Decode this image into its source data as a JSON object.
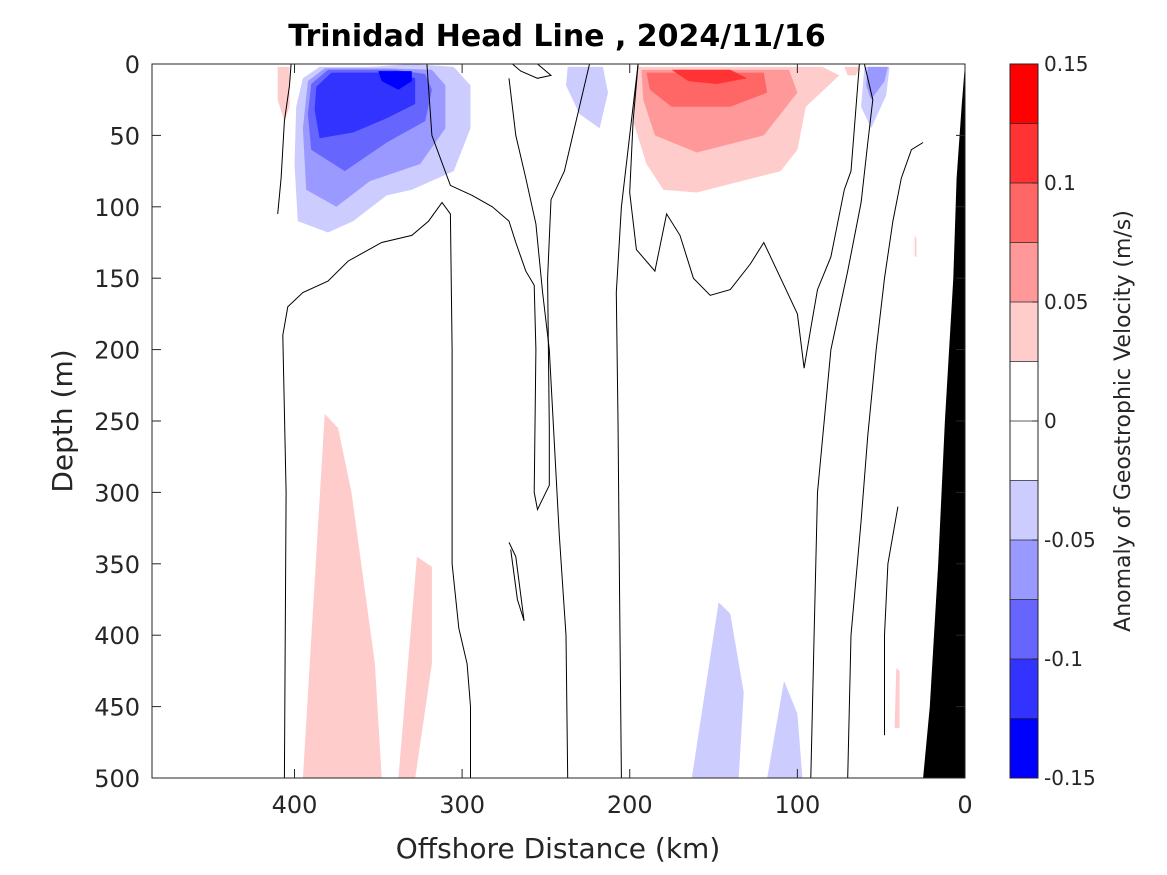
{
  "chart_data": {
    "type": "heatmap",
    "subtype": "filled contour section",
    "title": "Trinidad Head Line , 2024/11/16",
    "xlabel": "Offshore Distance (km)",
    "ylabel": "Depth (m)",
    "x_axis_reversed": true,
    "y_axis_reversed": true,
    "xlim": [
      485,
      0
    ],
    "ylim": [
      0,
      500
    ],
    "xticks": [
      400,
      300,
      200,
      100,
      0
    ],
    "yticks": [
      0,
      50,
      100,
      150,
      200,
      250,
      300,
      350,
      400,
      450,
      500
    ],
    "grid": false,
    "colorbar": {
      "label": "Anomaly of Geostrophic Velocity (m/s)",
      "range": [
        -0.15,
        0.15
      ],
      "ticks": [
        0.15,
        0.1,
        0.05,
        0,
        -0.05,
        -0.1,
        -0.15
      ],
      "tick_labels": [
        "0.15",
        "0.1",
        "0.05",
        "0",
        "-0.05",
        "-0.1",
        "-0.15"
      ],
      "levels": [
        {
          "min": 0.125,
          "max": 0.15,
          "color": "#ff0000"
        },
        {
          "min": 0.1,
          "max": 0.125,
          "color": "#ff3333"
        },
        {
          "min": 0.075,
          "max": 0.1,
          "color": "#ff6666"
        },
        {
          "min": 0.05,
          "max": 0.075,
          "color": "#ff9999"
        },
        {
          "min": 0.025,
          "max": 0.05,
          "color": "#ffcccc"
        },
        {
          "min": 0.0,
          "max": 0.025,
          "color": "#ffffff"
        },
        {
          "min": -0.025,
          "max": 0.0,
          "color": "#ffffff"
        },
        {
          "min": -0.05,
          "max": -0.025,
          "color": "#ccccff"
        },
        {
          "min": -0.075,
          "max": -0.05,
          "color": "#9999ff"
        },
        {
          "min": -0.1,
          "max": -0.075,
          "color": "#6666ff"
        },
        {
          "min": -0.125,
          "max": -0.1,
          "color": "#3333ff"
        },
        {
          "min": -0.15,
          "max": -0.125,
          "color": "#0000ff"
        }
      ]
    },
    "regions": [
      {
        "value": -0.04,
        "level": "-0.05..-0.025",
        "points": [
          [
            395,
            10
          ],
          [
            385,
            2
          ],
          [
            355,
            2
          ],
          [
            330,
            0
          ],
          [
            305,
            2
          ],
          [
            295,
            15
          ],
          [
            295,
            45
          ],
          [
            305,
            75
          ],
          [
            330,
            88
          ],
          [
            345,
            92
          ],
          [
            365,
            110
          ],
          [
            380,
            118
          ],
          [
            398,
            110
          ],
          [
            400,
            70
          ],
          [
            399,
            30
          ]
        ]
      },
      {
        "value": -0.065,
        "level": "-0.075..-0.05",
        "points": [
          [
            392,
            12
          ],
          [
            382,
            3
          ],
          [
            345,
            3
          ],
          [
            318,
            4
          ],
          [
            310,
            15
          ],
          [
            310,
            45
          ],
          [
            325,
            70
          ],
          [
            355,
            82
          ],
          [
            375,
            100
          ],
          [
            393,
            88
          ],
          [
            395,
            45
          ]
        ]
      },
      {
        "value": -0.09,
        "level": "-0.1..-0.075",
        "points": [
          [
            390,
            14
          ],
          [
            380,
            4
          ],
          [
            340,
            4
          ],
          [
            322,
            7
          ],
          [
            318,
            18
          ],
          [
            322,
            40
          ],
          [
            345,
            55
          ],
          [
            370,
            75
          ],
          [
            390,
            60
          ],
          [
            392,
            35
          ]
        ]
      },
      {
        "value": -0.112,
        "level": "-0.125..-0.1",
        "points": [
          [
            387,
            16
          ],
          [
            378,
            6
          ],
          [
            340,
            6
          ],
          [
            328,
            10
          ],
          [
            328,
            28
          ],
          [
            345,
            38
          ],
          [
            365,
            48
          ],
          [
            385,
            52
          ],
          [
            388,
            32
          ]
        ]
      },
      {
        "value": -0.13,
        "level": "-0.15..-0.125",
        "points": [
          [
            350,
            5
          ],
          [
            330,
            5
          ],
          [
            330,
            12
          ],
          [
            338,
            18
          ],
          [
            348,
            12
          ]
        ]
      },
      {
        "value": -0.04,
        "level": "-0.05..-0.025",
        "points": [
          [
            237,
            2
          ],
          [
            216,
            2
          ],
          [
            213,
            20
          ],
          [
            218,
            45
          ],
          [
            230,
            35
          ],
          [
            238,
            15
          ]
        ]
      },
      {
        "value": 0.04,
        "level": "0.025..0.05",
        "points": [
          [
            410,
            2
          ],
          [
            403,
            2
          ],
          [
            403,
            30
          ],
          [
            406,
            40
          ],
          [
            410,
            25
          ]
        ]
      },
      {
        "value": 0.04,
        "level": "0.025..0.05",
        "points": [
          [
            195,
            2
          ],
          [
            85,
            2
          ],
          [
            75,
            8
          ],
          [
            95,
            30
          ],
          [
            100,
            60
          ],
          [
            110,
            75
          ],
          [
            160,
            90
          ],
          [
            180,
            88
          ],
          [
            190,
            70
          ],
          [
            198,
            40
          ]
        ]
      },
      {
        "value": 0.065,
        "level": "0.05..0.075",
        "points": [
          [
            193,
            4
          ],
          [
            105,
            4
          ],
          [
            100,
            20
          ],
          [
            120,
            50
          ],
          [
            160,
            62
          ],
          [
            185,
            50
          ],
          [
            192,
            25
          ]
        ]
      },
      {
        "value": 0.09,
        "level": "0.075..0.1",
        "points": [
          [
            190,
            6
          ],
          [
            120,
            6
          ],
          [
            118,
            20
          ],
          [
            140,
            30
          ],
          [
            175,
            30
          ],
          [
            188,
            18
          ]
        ]
      },
      {
        "value": 0.11,
        "level": "0.1..0.125",
        "points": [
          [
            175,
            4
          ],
          [
            140,
            4
          ],
          [
            130,
            10
          ],
          [
            148,
            14
          ],
          [
            165,
            12
          ]
        ]
      },
      {
        "value": -0.04,
        "level": "-0.05..-0.025",
        "points": [
          [
            60,
            2
          ],
          [
            45,
            2
          ],
          [
            47,
            22
          ],
          [
            56,
            45
          ],
          [
            62,
            30
          ]
        ]
      },
      {
        "value": -0.065,
        "level": "-0.075..-0.05",
        "points": [
          [
            58,
            2
          ],
          [
            46,
            2
          ],
          [
            48,
            12
          ],
          [
            56,
            25
          ],
          [
            59,
            15
          ]
        ]
      },
      {
        "value": 0.04,
        "level": "0.025..0.05",
        "points": [
          [
            72,
            2
          ],
          [
            63,
            2
          ],
          [
            65,
            8
          ],
          [
            70,
            8
          ]
        ]
      },
      {
        "value": 0.04,
        "level": "0.025..0.05",
        "points": [
          [
            395,
            500
          ],
          [
            382,
            245
          ],
          [
            374,
            255
          ],
          [
            366,
            300
          ],
          [
            352,
            420
          ],
          [
            348,
            500
          ]
        ]
      },
      {
        "value": 0.04,
        "level": "0.025..0.05",
        "points": [
          [
            338,
            500
          ],
          [
            327,
            345
          ],
          [
            318,
            352
          ],
          [
            318,
            420
          ],
          [
            328,
            500
          ]
        ]
      },
      {
        "value": -0.04,
        "level": "-0.05..-0.025",
        "points": [
          [
            163,
            500
          ],
          [
            147,
            377
          ],
          [
            140,
            385
          ],
          [
            132,
            440
          ],
          [
            135,
            500
          ]
        ]
      },
      {
        "value": -0.04,
        "level": "-0.05..-0.025",
        "points": [
          [
            118,
            500
          ],
          [
            108,
            432
          ],
          [
            100,
            455
          ],
          [
            97,
            500
          ]
        ]
      },
      {
        "value": 0.04,
        "level": "0.025..0.05",
        "points": [
          [
            41,
            423
          ],
          [
            39,
            425
          ],
          [
            39,
            465
          ],
          [
            42,
            465
          ]
        ]
      },
      {
        "value": 0.04,
        "level": "0.025..0.05",
        "points": [
          [
            30,
            120
          ],
          [
            29,
            122
          ],
          [
            29,
            135
          ],
          [
            30,
            135
          ]
        ]
      }
    ],
    "zero_contours": [
      [
        [
          402,
          0
        ],
        [
          403,
          15
        ],
        [
          406,
          40
        ],
        [
          408,
          80
        ],
        [
          410,
          105
        ]
      ],
      [
        [
          406,
          500
        ],
        [
          405,
          300
        ],
        [
          407,
          190
        ],
        [
          404,
          170
        ],
        [
          395,
          160
        ],
        [
          380,
          152
        ],
        [
          368,
          138
        ],
        [
          348,
          125
        ],
        [
          330,
          120
        ],
        [
          320,
          110
        ],
        [
          312,
          97
        ],
        [
          307,
          105
        ],
        [
          306,
          200
        ],
        [
          306,
          350
        ],
        [
          302,
          395
        ],
        [
          297,
          420
        ],
        [
          295,
          450
        ],
        [
          295,
          500
        ]
      ],
      [
        [
          255,
          0
        ],
        [
          247,
          8
        ],
        [
          255,
          10
        ],
        [
          265,
          5
        ],
        [
          270,
          0
        ]
      ],
      [
        [
          321,
          0
        ],
        [
          318,
          50
        ],
        [
          307,
          85
        ],
        [
          294,
          92
        ],
        [
          282,
          100
        ],
        [
          272,
          110
        ],
        [
          268,
          125
        ],
        [
          262,
          145
        ],
        [
          257,
          155
        ],
        [
          256,
          200
        ],
        [
          257,
          300
        ],
        [
          255,
          312
        ],
        [
          248,
          295
        ],
        [
          248,
          255
        ],
        [
          249,
          150
        ],
        [
          247,
          95
        ],
        [
          239,
          75
        ],
        [
          233,
          45
        ],
        [
          224,
          0
        ]
      ],
      [
        [
          272,
          335
        ],
        [
          268,
          345
        ],
        [
          263,
          390
        ],
        [
          267,
          375
        ],
        [
          271,
          340
        ]
      ],
      [
        [
          237,
          500
        ],
        [
          238,
          400
        ],
        [
          242,
          330
        ],
        [
          248,
          200
        ],
        [
          252,
          160
        ],
        [
          256,
          112
        ],
        [
          262,
          80
        ],
        [
          268,
          50
        ],
        [
          272,
          10
        ]
      ],
      [
        [
          205,
          500
        ],
        [
          206,
          380
        ],
        [
          207,
          250
        ],
        [
          208,
          160
        ],
        [
          205,
          100
        ],
        [
          200,
          50
        ],
        [
          195,
          0
        ]
      ],
      [
        [
          195,
          0
        ],
        [
          198,
          40
        ],
        [
          200,
          90
        ],
        [
          196,
          130
        ],
        [
          185,
          145
        ],
        [
          178,
          105
        ],
        [
          170,
          120
        ],
        [
          162,
          150
        ],
        [
          152,
          162
        ],
        [
          140,
          158
        ],
        [
          128,
          140
        ],
        [
          120,
          125
        ],
        [
          108,
          155
        ],
        [
          100,
          175
        ],
        [
          96,
          213
        ],
        [
          92,
          185
        ],
        [
          88,
          158
        ],
        [
          80,
          135
        ],
        [
          72,
          88
        ],
        [
          68,
          75
        ],
        [
          63,
          0
        ]
      ],
      [
        [
          92,
          500
        ],
        [
          90,
          400
        ],
        [
          88,
          300
        ],
        [
          80,
          200
        ],
        [
          70,
          145
        ],
        [
          62,
          97
        ],
        [
          58,
          55
        ],
        [
          55,
          25
        ],
        [
          60,
          0
        ]
      ],
      [
        [
          70,
          500
        ],
        [
          68,
          400
        ],
        [
          62,
          320
        ],
        [
          58,
          260
        ],
        [
          53,
          200
        ],
        [
          48,
          150
        ],
        [
          43,
          110
        ],
        [
          38,
          80
        ],
        [
          32,
          60
        ],
        [
          25,
          55
        ]
      ],
      [
        [
          48,
          470
        ],
        [
          48,
          400
        ],
        [
          46,
          350
        ],
        [
          43,
          330
        ],
        [
          40,
          310
        ]
      ]
    ],
    "bathymetry": {
      "color": "#000000",
      "points": [
        [
          0,
          0
        ],
        [
          2,
          30
        ],
        [
          5,
          80
        ],
        [
          7,
          150
        ],
        [
          12,
          250
        ],
        [
          16,
          350
        ],
        [
          21,
          450
        ],
        [
          25,
          500
        ],
        [
          0,
          500
        ]
      ]
    }
  }
}
